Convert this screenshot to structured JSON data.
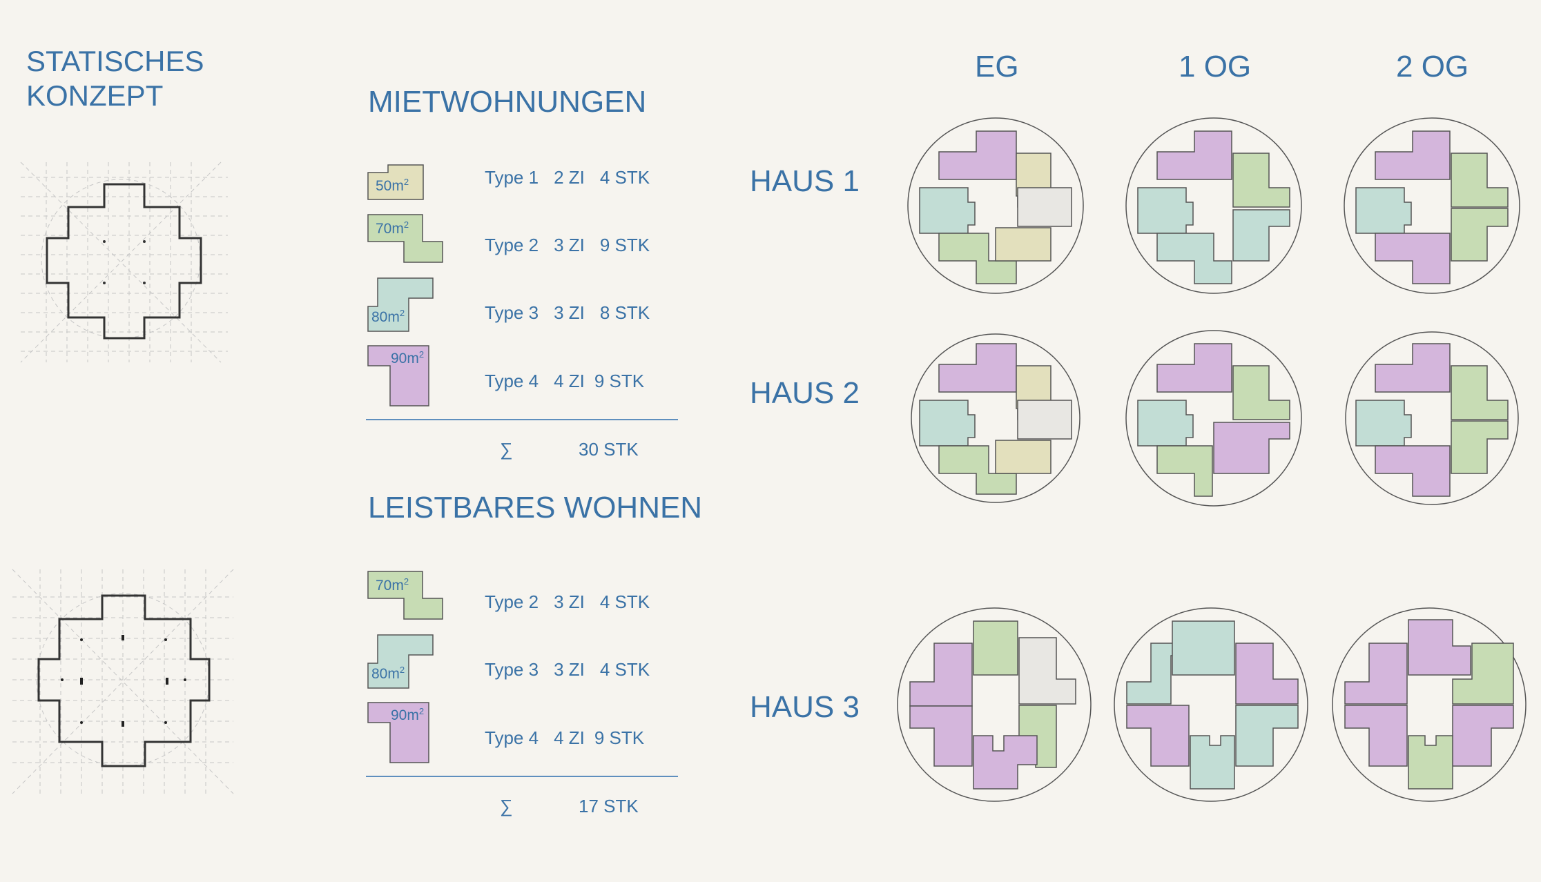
{
  "structural": {
    "title_line1": "STATISCHES",
    "title_line2": "KONZEPT"
  },
  "floor_headers": [
    "EG",
    "1 OG",
    "2 OG"
  ],
  "houses": [
    "HAUS 1",
    "HAUS 2",
    "HAUS 3"
  ],
  "miet": {
    "title": "MIETWOHNUNGEN",
    "rows": [
      {
        "type": "Type 1",
        "zi": "2 ZI",
        "stk": "4 STK",
        "area": "50m",
        "exp": "2"
      },
      {
        "type": "Type 2",
        "zi": "3 ZI",
        "stk": "9 STK",
        "area": "70m",
        "exp": "2"
      },
      {
        "type": "Type 3",
        "zi": "3 ZI",
        "stk": "8 STK",
        "area": "80m",
        "exp": "2"
      },
      {
        "type": "Type 4",
        "zi": "4 ZI",
        "stk": "9 STK",
        "area": "90m",
        "exp": "2"
      }
    ],
    "sum_symbol": "∑",
    "sum": "30 STK"
  },
  "leist": {
    "title": "LEISTBARES WOHNEN",
    "rows": [
      {
        "type": "Type 2",
        "zi": "3 ZI",
        "stk": "4 STK",
        "area": "70m",
        "exp": "2"
      },
      {
        "type": "Type 3",
        "zi": "3 ZI",
        "stk": "4 STK",
        "area": "80m",
        "exp": "2"
      },
      {
        "type": "Type 4",
        "zi": "4 ZI",
        "stk": "9 STK",
        "area": "90m",
        "exp": "2"
      }
    ],
    "sum_symbol": "∑",
    "sum": "17 STK"
  },
  "colors": {
    "text": "#3a72a6",
    "type1": "#e3e0bd",
    "type2": "#c7dcb4",
    "type3": "#c2ddd5",
    "type4": "#d4b6dc",
    "neutral": "#e8e7e3",
    "background": "#f6f4ef"
  }
}
